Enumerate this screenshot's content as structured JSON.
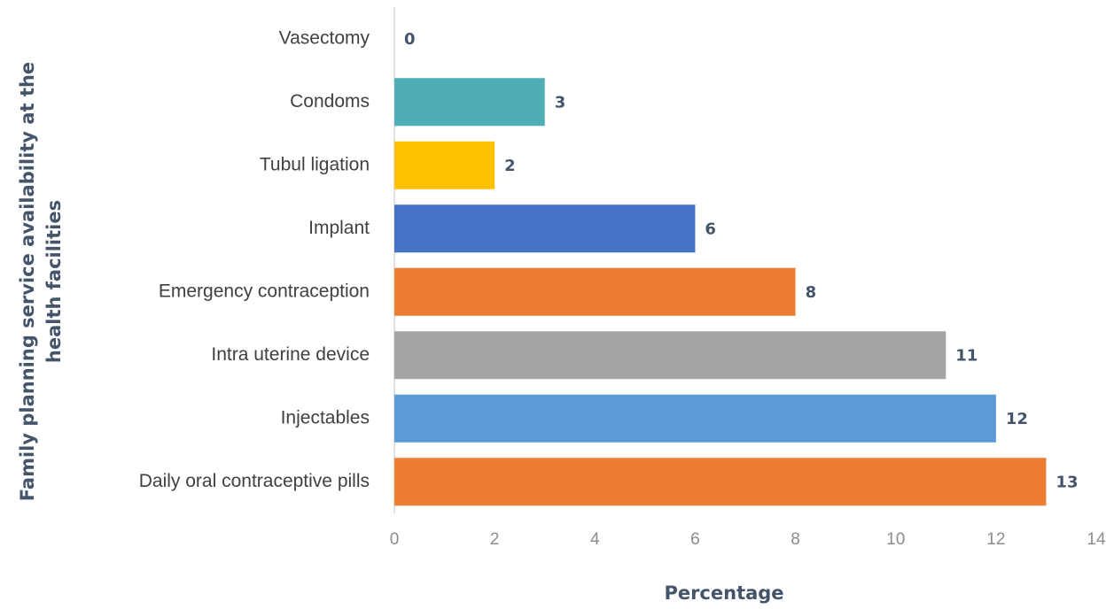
{
  "chart_data": {
    "type": "hbar",
    "x_label": "Percentage",
    "y_label": [
      "Family planning service availability at the",
      "health facilities"
    ],
    "categories": [
      "Vasectomy",
      "Condoms",
      "Tubul ligation",
      "Implant",
      "Emergency contraception",
      "Intra uterine device",
      "Injectables",
      "Daily oral contraceptive pills"
    ],
    "values": [
      0,
      3,
      2,
      6,
      8,
      11,
      12,
      13
    ],
    "colors": [
      "#70ad47",
      "#4eadb5",
      "#ffc000",
      "#4472c4",
      "#ed7d31",
      "#a5a5a5",
      "#5b9bd5",
      "#ed7d31"
    ],
    "xlim": [
      0,
      14
    ],
    "xticks": [
      0,
      2,
      4,
      6,
      8,
      10,
      12,
      14
    ],
    "grid": false
  }
}
